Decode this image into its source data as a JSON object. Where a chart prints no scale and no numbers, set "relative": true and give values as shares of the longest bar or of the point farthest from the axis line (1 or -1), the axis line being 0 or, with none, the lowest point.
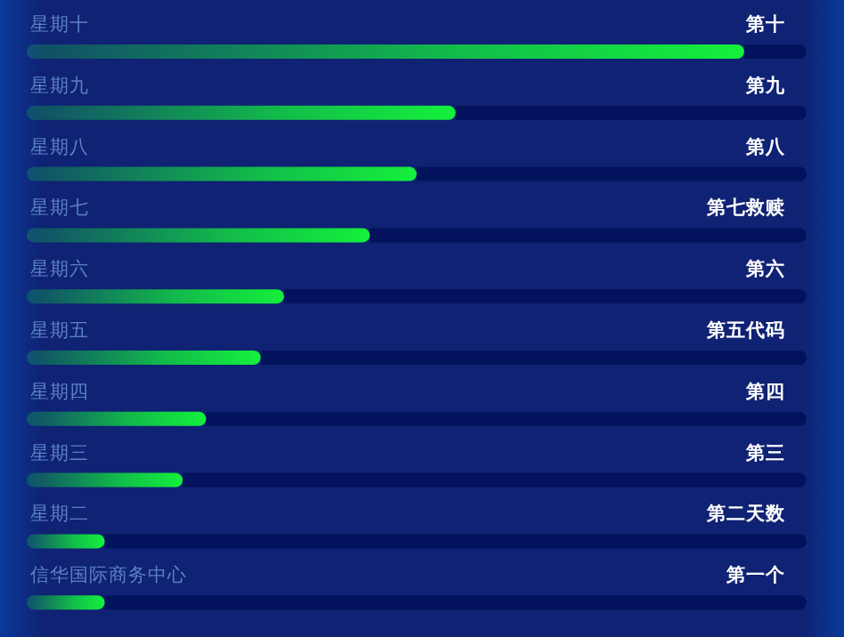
{
  "chart_data": {
    "type": "bar",
    "orientation": "horizontal",
    "relative": true,
    "stacked": true,
    "categories": [
      "星期十",
      "星期九",
      "星期八",
      "星期七",
      "星期六",
      "星期五",
      "星期四",
      "星期三",
      "星期二",
      "信华国际商务中心"
    ],
    "series": [
      {
        "color": "#14f03c",
        "values": [
          0.92,
          0.55,
          0.5,
          0.44,
          0.33,
          0.3,
          0.23,
          0.2,
          0.1,
          0.1
        ]
      },
      {
        "color": "#03125c",
        "values": [
          0.08,
          0.45,
          0.5,
          0.56,
          0.67,
          0.7,
          0.77,
          0.8,
          0.9,
          0.9
        ]
      }
    ],
    "annotations": [
      "第十",
      "第九",
      "第八",
      "第七救赎",
      "第六",
      "第五代码",
      "第四",
      "第三",
      "第二天数",
      "第一个"
    ]
  }
}
